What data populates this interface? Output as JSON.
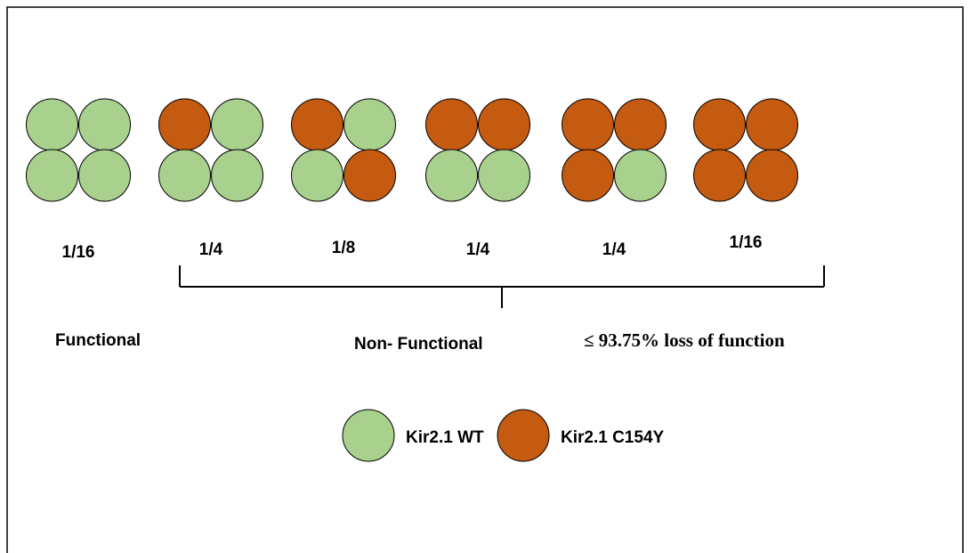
{
  "colors": {
    "wt": "#a9d18e",
    "mutant": "#c55a11",
    "outline": "#000000",
    "frame": "#000000"
  },
  "tetramers": [
    {
      "subunits": [
        "wt",
        "wt",
        "wt",
        "wt"
      ],
      "fraction": "1/16"
    },
    {
      "subunits": [
        "mutant",
        "wt",
        "wt",
        "wt"
      ],
      "fraction": "1/4"
    },
    {
      "subunits": [
        "mutant",
        "wt",
        "wt",
        "mutant"
      ],
      "fraction": "1/8"
    },
    {
      "subunits": [
        "mutant",
        "mutant",
        "wt",
        "wt"
      ],
      "fraction": "1/4"
    },
    {
      "subunits": [
        "mutant",
        "mutant",
        "mutant",
        "wt"
      ],
      "fraction": "1/4"
    },
    {
      "subunits": [
        "mutant",
        "mutant",
        "mutant",
        "mutant"
      ],
      "fraction": "1/16"
    }
  ],
  "labels": {
    "functional": "Functional",
    "non_functional": "Non- Functional",
    "loss": "≤ 93.75% loss of function"
  },
  "legend": {
    "wt_label": "Kir2.1 WT",
    "mutant_label": "Kir2.1 C154Y"
  }
}
